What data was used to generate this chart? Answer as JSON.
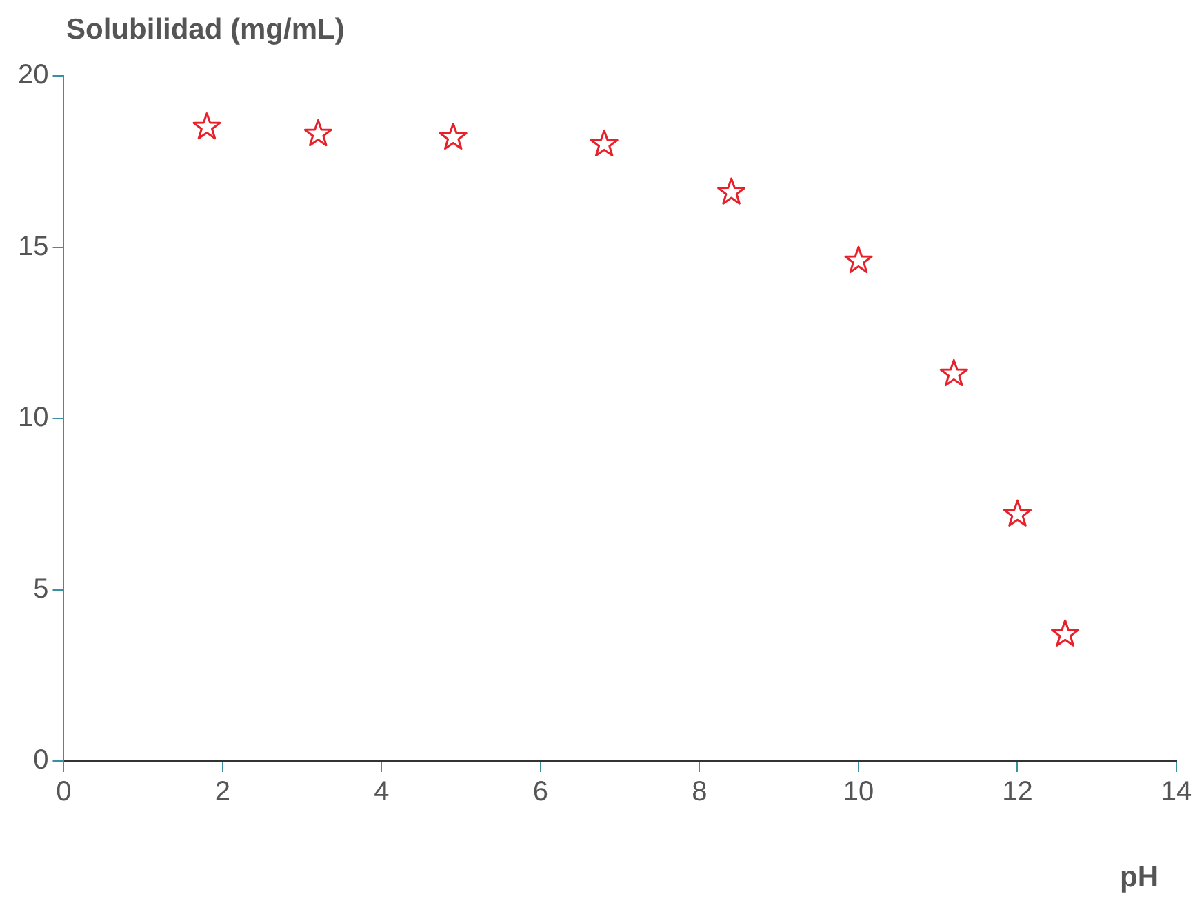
{
  "chart_data": {
    "type": "scatter",
    "ylabel": "Solubilidad (mg/mL)",
    "xlabel": "pH",
    "x": [
      1.8,
      3.2,
      4.9,
      6.8,
      8.4,
      10.0,
      11.2,
      12.0,
      12.6
    ],
    "series": [
      {
        "color": "#e8202a",
        "values": [
          18.5,
          18.3,
          18.2,
          18.0,
          16.6,
          14.6,
          11.3,
          7.2,
          3.7
        ]
      }
    ],
    "xlim": [
      0,
      14
    ],
    "xticks": [
      0,
      2,
      4,
      6,
      8,
      10,
      12,
      14
    ],
    "ylim": [
      0,
      20
    ],
    "yticks": [
      0,
      5,
      10,
      15,
      20
    ],
    "marker": "star",
    "grid": false,
    "legend": false
  }
}
